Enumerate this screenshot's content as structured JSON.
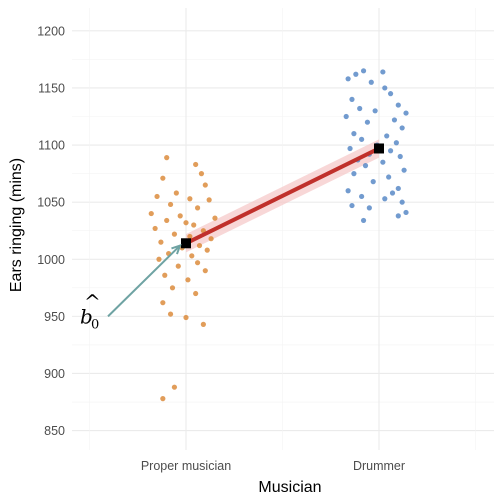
{
  "chart_data": {
    "type": "scatter",
    "xlabel": "Musician",
    "ylabel": "Ears ringing (mins)",
    "categories": [
      "Proper musician",
      "Drummer"
    ],
    "ylim": [
      833,
      1220
    ],
    "yticks": [
      850,
      900,
      950,
      1000,
      1050,
      1100,
      1150,
      1200
    ],
    "grid": true,
    "colors": {
      "group_0": "#d9822b",
      "group_1": "#4a7fc1",
      "fit_line": "#c0302b",
      "fit_band": "#f5c6c6",
      "mean_marker": "#000000",
      "arrow": "#6fa3a3"
    },
    "series": [
      {
        "category": "Proper musician",
        "points": [
          {
            "j": -0.1,
            "y": 1089
          },
          {
            "j": 0.05,
            "y": 1083
          },
          {
            "j": -0.12,
            "y": 1071
          },
          {
            "j": 0.08,
            "y": 1075
          },
          {
            "j": 0.1,
            "y": 1065
          },
          {
            "j": -0.05,
            "y": 1058
          },
          {
            "j": -0.15,
            "y": 1055
          },
          {
            "j": 0.02,
            "y": 1053
          },
          {
            "j": 0.12,
            "y": 1052
          },
          {
            "j": -0.08,
            "y": 1048
          },
          {
            "j": 0.06,
            "y": 1045
          },
          {
            "j": -0.18,
            "y": 1040
          },
          {
            "j": -0.03,
            "y": 1038
          },
          {
            "j": 0.15,
            "y": 1036
          },
          {
            "j": -0.1,
            "y": 1034
          },
          {
            "j": 0.0,
            "y": 1032
          },
          {
            "j": 0.04,
            "y": 1030
          },
          {
            "j": -0.16,
            "y": 1027
          },
          {
            "j": 0.09,
            "y": 1025
          },
          {
            "j": -0.06,
            "y": 1022
          },
          {
            "j": 0.02,
            "y": 1020
          },
          {
            "j": 0.13,
            "y": 1018
          },
          {
            "j": -0.13,
            "y": 1015
          },
          {
            "j": 0.07,
            "y": 1012
          },
          {
            "j": -0.02,
            "y": 1010
          },
          {
            "j": 0.11,
            "y": 1008
          },
          {
            "j": -0.09,
            "y": 1005
          },
          {
            "j": 0.03,
            "y": 1003
          },
          {
            "j": -0.14,
            "y": 1000
          },
          {
            "j": 0.06,
            "y": 997
          },
          {
            "j": -0.04,
            "y": 994
          },
          {
            "j": 0.1,
            "y": 990
          },
          {
            "j": -0.11,
            "y": 986
          },
          {
            "j": 0.01,
            "y": 982
          },
          {
            "j": -0.07,
            "y": 975
          },
          {
            "j": 0.05,
            "y": 970
          },
          {
            "j": -0.12,
            "y": 962
          },
          {
            "j": -0.08,
            "y": 952
          },
          {
            "j": 0.0,
            "y": 949
          },
          {
            "j": 0.09,
            "y": 943
          },
          {
            "j": -0.06,
            "y": 888
          },
          {
            "j": -0.12,
            "y": 878
          }
        ]
      },
      {
        "category": "Drummer",
        "points": [
          {
            "j": -0.08,
            "y": 1165
          },
          {
            "j": -0.12,
            "y": 1162
          },
          {
            "j": 0.02,
            "y": 1164
          },
          {
            "j": -0.16,
            "y": 1158
          },
          {
            "j": -0.04,
            "y": 1155
          },
          {
            "j": 0.03,
            "y": 1150
          },
          {
            "j": 0.06,
            "y": 1145
          },
          {
            "j": -0.14,
            "y": 1140
          },
          {
            "j": 0.1,
            "y": 1135
          },
          {
            "j": -0.1,
            "y": 1132
          },
          {
            "j": -0.02,
            "y": 1130
          },
          {
            "j": 0.14,
            "y": 1128
          },
          {
            "j": -0.17,
            "y": 1125
          },
          {
            "j": 0.08,
            "y": 1122
          },
          {
            "j": -0.06,
            "y": 1120
          },
          {
            "j": 0.12,
            "y": 1115
          },
          {
            "j": -0.13,
            "y": 1110
          },
          {
            "j": 0.04,
            "y": 1108
          },
          {
            "j": -0.09,
            "y": 1105
          },
          {
            "j": 0.09,
            "y": 1102
          },
          {
            "j": -0.01,
            "y": 1100
          },
          {
            "j": -0.15,
            "y": 1097
          },
          {
            "j": 0.06,
            "y": 1095
          },
          {
            "j": -0.05,
            "y": 1092
          },
          {
            "j": 0.11,
            "y": 1090
          },
          {
            "j": -0.11,
            "y": 1087
          },
          {
            "j": 0.02,
            "y": 1085
          },
          {
            "j": -0.07,
            "y": 1082
          },
          {
            "j": 0.13,
            "y": 1078
          },
          {
            "j": -0.13,
            "y": 1075
          },
          {
            "j": 0.05,
            "y": 1072
          },
          {
            "j": -0.03,
            "y": 1068
          },
          {
            "j": 0.1,
            "y": 1062
          },
          {
            "j": -0.16,
            "y": 1060
          },
          {
            "j": 0.07,
            "y": 1058
          },
          {
            "j": -0.09,
            "y": 1055
          },
          {
            "j": 0.03,
            "y": 1053
          },
          {
            "j": 0.12,
            "y": 1050
          },
          {
            "j": -0.14,
            "y": 1047
          },
          {
            "j": -0.05,
            "y": 1045
          },
          {
            "j": 0.14,
            "y": 1041
          },
          {
            "j": 0.1,
            "y": 1038
          },
          {
            "j": -0.08,
            "y": 1034
          }
        ]
      }
    ],
    "means": [
      {
        "category": "Proper musician",
        "y": 1014
      },
      {
        "category": "Drummer",
        "y": 1097
      }
    ],
    "confidence_band": [
      {
        "category": "Proper musician",
        "lower": 1006,
        "upper": 1022
      },
      {
        "category": "Drummer",
        "lower": 1089,
        "upper": 1105
      }
    ],
    "annotation": {
      "label_main": "b",
      "label_hat": "^",
      "label_sub": "0",
      "arrow_from_y": 950,
      "arrow_to_category": "Proper musician",
      "arrow_to_y": 1012
    }
  }
}
